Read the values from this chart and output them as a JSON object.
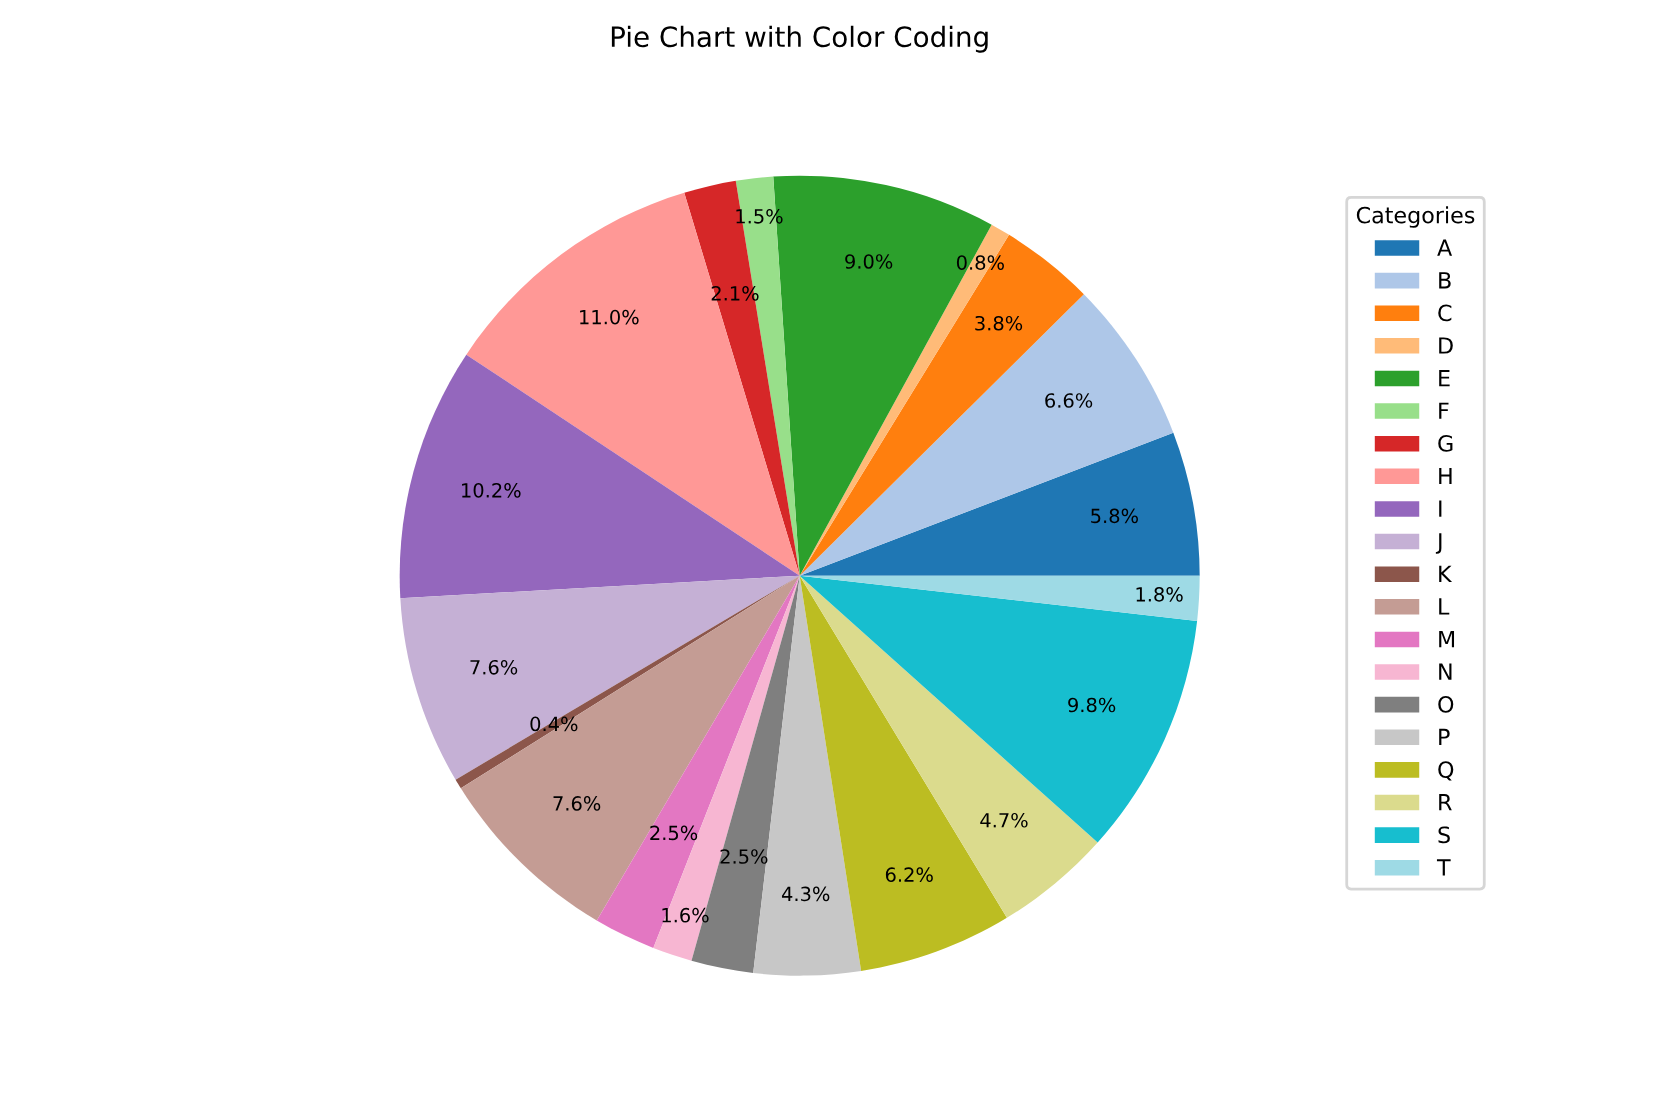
{
  "chart_data": {
    "type": "pie",
    "title": "Pie Chart with Color Coding",
    "legend_title": "Categories",
    "legend": "right",
    "categories": [
      "A",
      "B",
      "C",
      "D",
      "E",
      "F",
      "G",
      "H",
      "I",
      "J",
      "K",
      "L",
      "M",
      "N",
      "O",
      "P",
      "Q",
      "R",
      "S",
      "T"
    ],
    "values": [
      5.8,
      6.6,
      3.8,
      0.8,
      9.0,
      1.5,
      2.1,
      11.0,
      10.2,
      7.6,
      0.4,
      7.6,
      2.5,
      1.6,
      2.5,
      4.3,
      6.2,
      4.7,
      9.8,
      1.8
    ],
    "value_labels": [
      "5.8%",
      "6.6%",
      "3.8%",
      "0.8%",
      "9.0%",
      "1.5%",
      "2.1%",
      "11.0%",
      "10.2%",
      "7.6%",
      "0.4%",
      "7.6%",
      "2.5%",
      "1.6%",
      "2.5%",
      "4.3%",
      "6.2%",
      "4.7%",
      "9.8%",
      "1.8%"
    ],
    "colors": [
      "#1f77b4",
      "#aec7e8",
      "#ff7f0e",
      "#ffbb78",
      "#2ca02c",
      "#98df8a",
      "#d62728",
      "#ff9896",
      "#9467bd",
      "#c5b0d5",
      "#8c564b",
      "#c49c94",
      "#e377c2",
      "#f7b6d2",
      "#7f7f7f",
      "#c7c7c7",
      "#bcbd22",
      "#dbdb8d",
      "#17becf",
      "#9edae5"
    ]
  }
}
